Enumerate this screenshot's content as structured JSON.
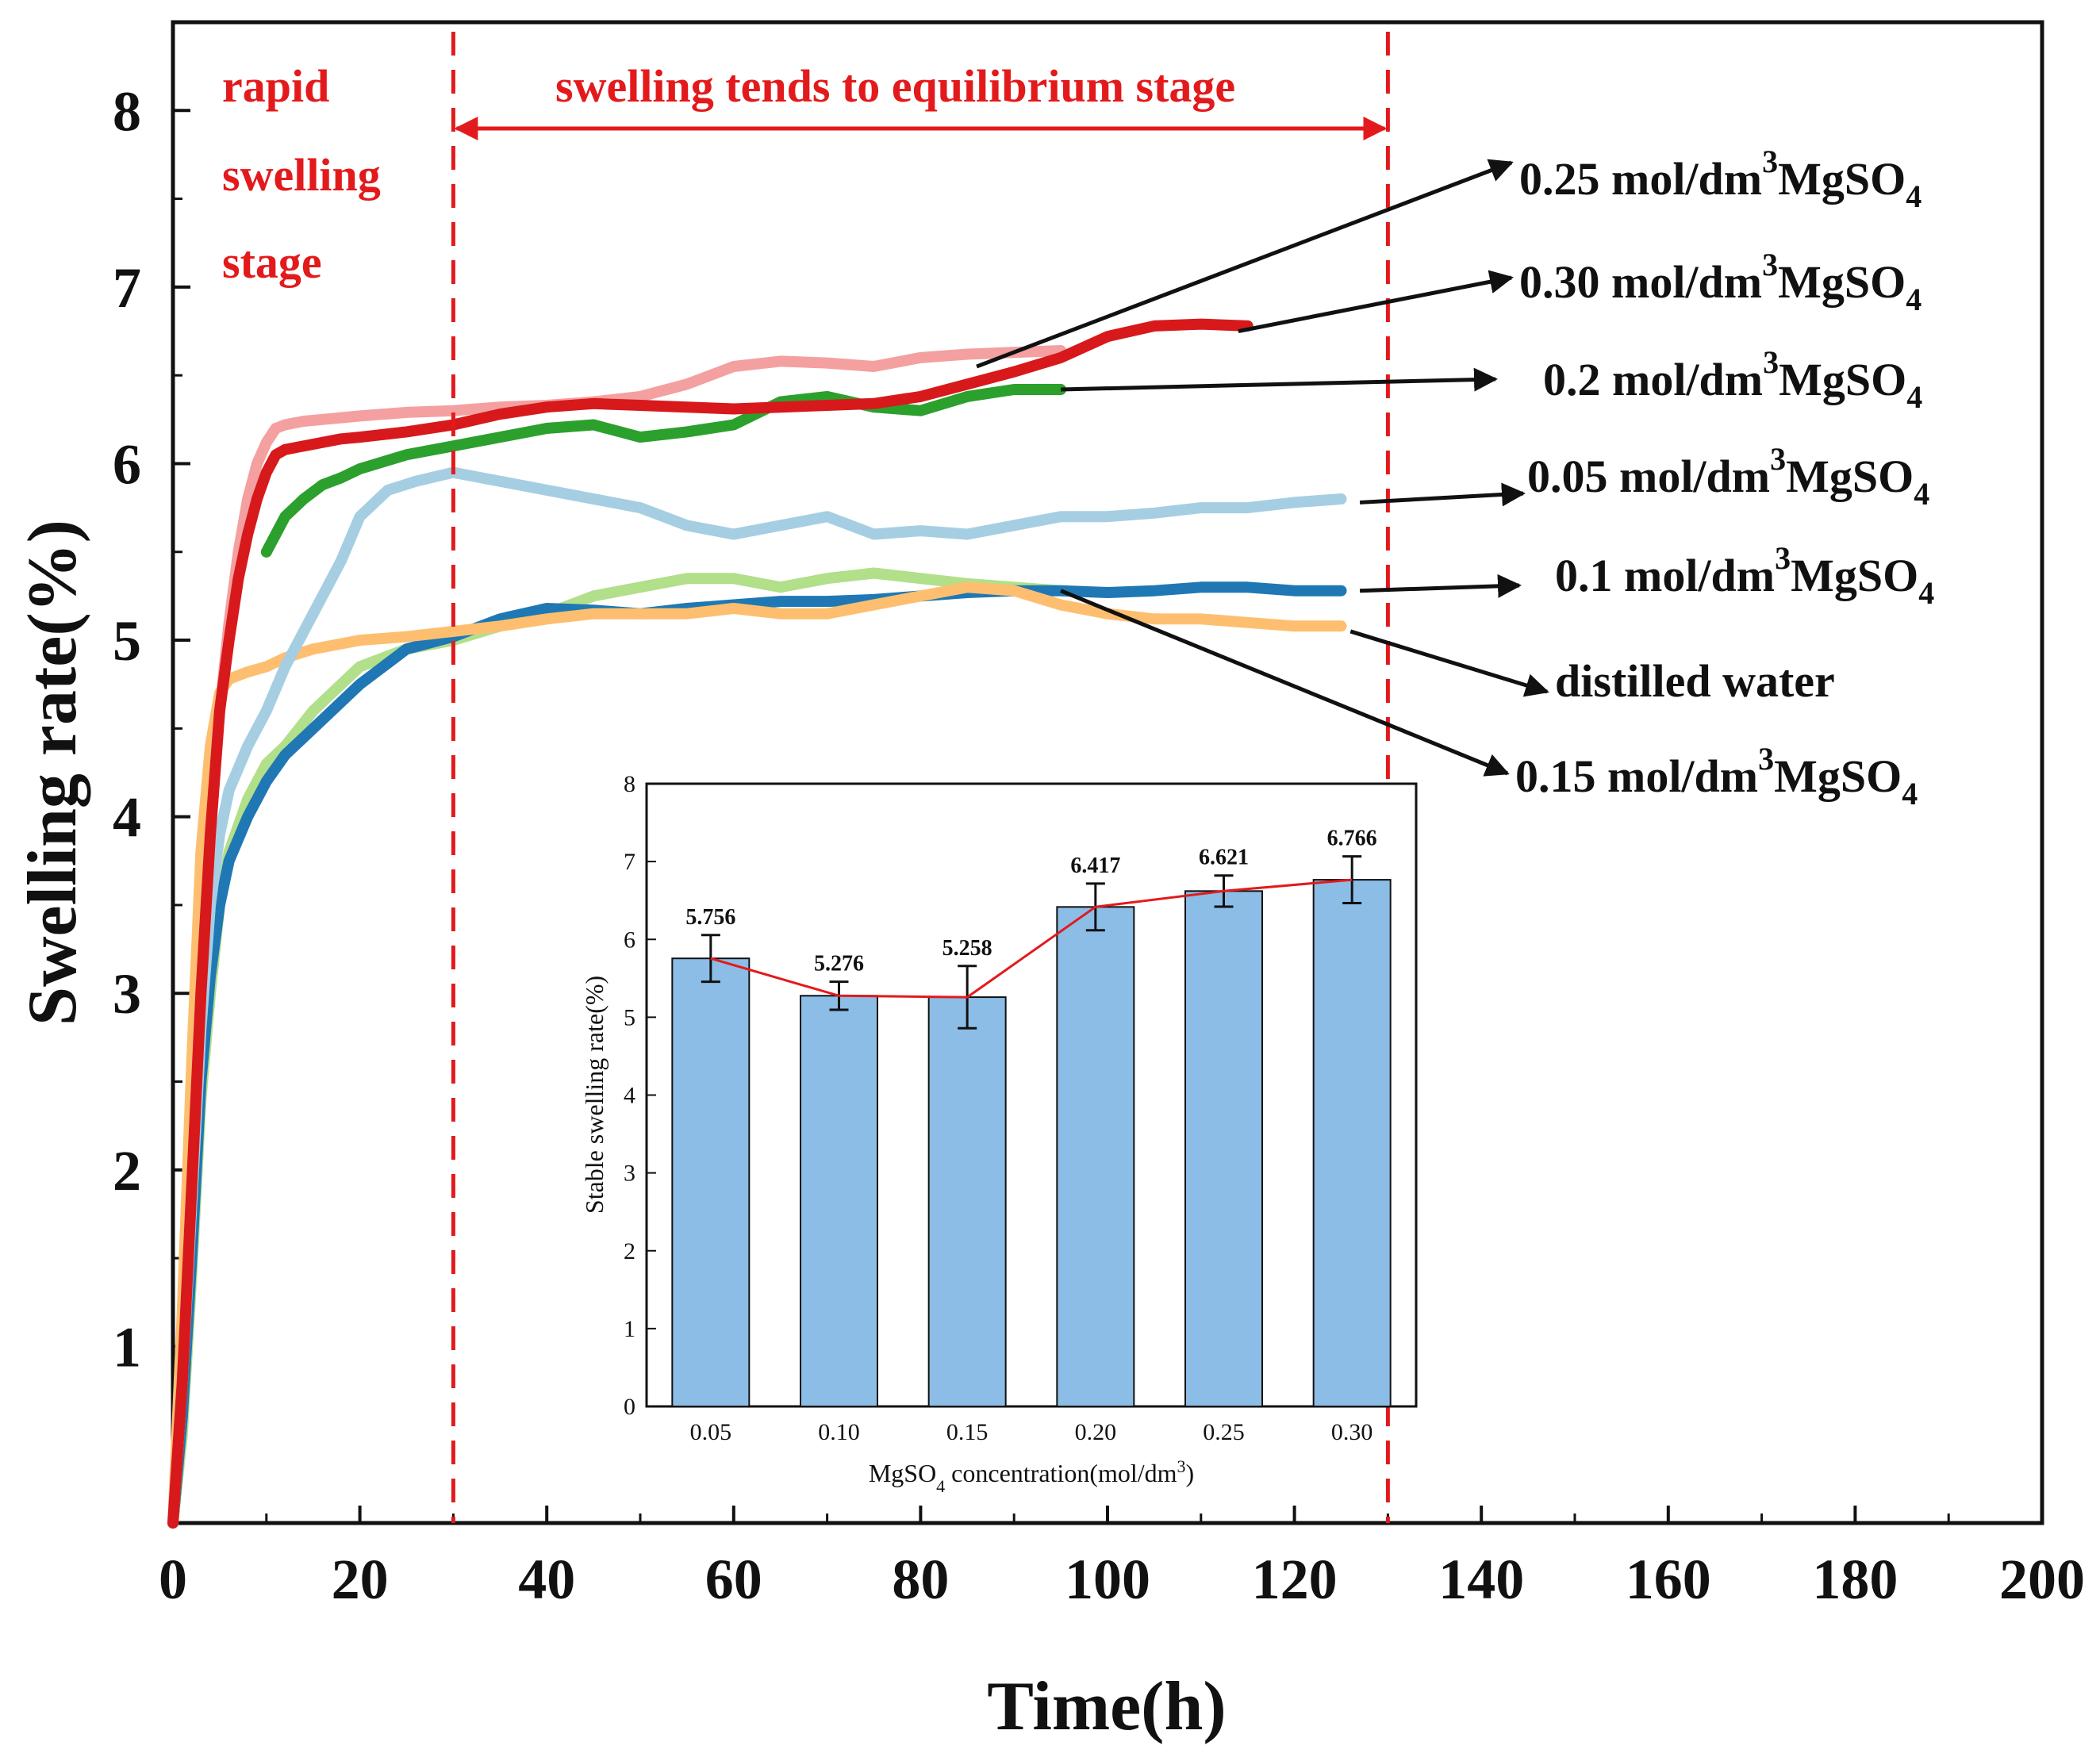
{
  "chart_data": [
    {
      "type": "line",
      "title": "",
      "xlabel": "Time(h)",
      "ylabel": "Swelling rate(%)",
      "xlim": [
        0,
        200
      ],
      "ylim": [
        0,
        8.5
      ],
      "xticks": [
        "0",
        "20",
        "40",
        "60",
        "80",
        "100",
        "120",
        "140",
        "160",
        "180",
        "200"
      ],
      "yticks": [
        "1",
        "2",
        "3",
        "4",
        "5",
        "6",
        "7",
        "8"
      ],
      "stage_markers": [
        30,
        130
      ],
      "annotations": {
        "rapid_line1": "rapid",
        "rapid_line2": "swelling",
        "rapid_line3": "stage",
        "equilibrium": "swelling tends to equilibrium stage"
      },
      "series": [
        {
          "name": "0.25 mol/dm3MgSO4",
          "label_value": "0.25 mol/dm",
          "label_sup": "3",
          "label_chem": "MgSO",
          "label_sub": "4",
          "color": "#f4a0a0",
          "x": [
            0,
            1,
            2,
            3,
            4,
            5,
            6,
            7,
            8,
            9,
            10,
            11,
            12,
            14,
            16,
            18,
            20,
            25,
            30,
            35,
            40,
            45,
            50,
            55,
            60,
            65,
            70,
            75,
            80,
            85,
            90,
            95
          ],
          "y": [
            0,
            0.8,
            1.9,
            3.0,
            3.9,
            4.6,
            5.1,
            5.5,
            5.8,
            6.0,
            6.12,
            6.2,
            6.22,
            6.24,
            6.25,
            6.26,
            6.27,
            6.29,
            6.3,
            6.32,
            6.33,
            6.35,
            6.38,
            6.45,
            6.55,
            6.58,
            6.57,
            6.55,
            6.6,
            6.62,
            6.63,
            6.64
          ]
        },
        {
          "name": "0.30 mol/dm3MgSO4",
          "label_value": "0.30 mol/dm",
          "label_sup": "3",
          "label_chem": "MgSO",
          "label_sub": "4",
          "color": "#d7191c",
          "x": [
            0,
            1,
            2,
            3,
            4,
            5,
            6,
            7,
            8,
            9,
            10,
            11,
            12,
            14,
            16,
            18,
            20,
            25,
            30,
            35,
            40,
            45,
            50,
            55,
            60,
            65,
            70,
            75,
            80,
            85,
            90,
            95,
            100,
            105,
            110,
            115
          ],
          "y": [
            0,
            0.8,
            1.9,
            3.0,
            3.9,
            4.6,
            5.0,
            5.35,
            5.6,
            5.8,
            5.95,
            6.05,
            6.08,
            6.1,
            6.12,
            6.14,
            6.15,
            6.18,
            6.22,
            6.28,
            6.32,
            6.34,
            6.33,
            6.32,
            6.31,
            6.32,
            6.33,
            6.34,
            6.38,
            6.45,
            6.52,
            6.6,
            6.72,
            6.78,
            6.79,
            6.78
          ]
        },
        {
          "name": "0.2 mol/dm3MgSO4",
          "label_value": "0.2 mol/dm",
          "label_sup": "3",
          "label_chem": "MgSO",
          "label_sub": "4",
          "color": "#2ca02c",
          "x": [
            10,
            12,
            14,
            16,
            18,
            20,
            25,
            30,
            35,
            40,
            45,
            50,
            55,
            60,
            65,
            70,
            75,
            80,
            85,
            90,
            95
          ],
          "y": [
            5.5,
            5.7,
            5.8,
            5.88,
            5.92,
            5.97,
            6.05,
            6.1,
            6.15,
            6.2,
            6.22,
            6.15,
            6.18,
            6.22,
            6.35,
            6.38,
            6.32,
            6.3,
            6.38,
            6.42,
            6.42
          ]
        },
        {
          "name": "0.05 mol/dm3MgSO4",
          "label_value": "0.05 mol/dm",
          "label_sup": "3",
          "label_chem": "MgSO",
          "label_sub": "4",
          "color": "#a6cee3",
          "x": [
            0,
            1,
            2,
            3,
            4,
            5,
            6,
            8,
            10,
            12,
            15,
            18,
            20,
            23,
            26,
            30,
            35,
            40,
            45,
            50,
            55,
            60,
            65,
            70,
            75,
            80,
            85,
            90,
            95,
            100,
            105,
            110,
            115,
            120,
            125
          ],
          "y": [
            0,
            0.8,
            1.8,
            2.8,
            3.5,
            3.9,
            4.15,
            4.4,
            4.6,
            4.85,
            5.15,
            5.45,
            5.7,
            5.85,
            5.9,
            5.95,
            5.9,
            5.85,
            5.8,
            5.75,
            5.65,
            5.6,
            5.65,
            5.7,
            5.6,
            5.62,
            5.6,
            5.65,
            5.7,
            5.7,
            5.72,
            5.75,
            5.75,
            5.78,
            5.8
          ]
        },
        {
          "name": "0.1 mol/dm3MgSO4",
          "label_value": "0.1 mol/dm",
          "label_sup": "3",
          "label_chem": "MgSO",
          "label_sub": "4",
          "color": "#1f78b4",
          "x": [
            0,
            1,
            2,
            3,
            4,
            5,
            6,
            8,
            10,
            12,
            15,
            18,
            20,
            25,
            30,
            35,
            40,
            45,
            50,
            55,
            60,
            65,
            70,
            75,
            80,
            85,
            90,
            95,
            100,
            105,
            110,
            115,
            120,
            125
          ],
          "y": [
            0,
            0.6,
            1.5,
            2.5,
            3.1,
            3.5,
            3.75,
            4.0,
            4.2,
            4.35,
            4.5,
            4.65,
            4.75,
            4.95,
            5.02,
            5.12,
            5.18,
            5.17,
            5.15,
            5.18,
            5.2,
            5.22,
            5.22,
            5.23,
            5.25,
            5.27,
            5.28,
            5.28,
            5.27,
            5.28,
            5.3,
            5.3,
            5.28,
            5.28
          ]
        },
        {
          "name": "distilled water",
          "label_value": "distilled water",
          "label_sup": "",
          "label_chem": "",
          "label_sub": "",
          "color": "#fdbf6f",
          "x": [
            0,
            1,
            2,
            3,
            4,
            5,
            6,
            8,
            10,
            12,
            15,
            20,
            25,
            30,
            35,
            40,
            45,
            50,
            55,
            60,
            65,
            70,
            75,
            80,
            85,
            90,
            95,
            100,
            105,
            110,
            115,
            120,
            125
          ],
          "y": [
            0,
            1.2,
            2.6,
            3.8,
            4.4,
            4.7,
            4.78,
            4.82,
            4.85,
            4.9,
            4.95,
            5.0,
            5.02,
            5.05,
            5.08,
            5.12,
            5.15,
            5.15,
            5.15,
            5.18,
            5.15,
            5.15,
            5.2,
            5.25,
            5.3,
            5.28,
            5.2,
            5.15,
            5.12,
            5.12,
            5.1,
            5.08,
            5.08
          ]
        },
        {
          "name": "0.15 mol/dm3MgSO4",
          "label_value": "0.15 mol/dm",
          "label_sup": "3",
          "label_chem": "MgSO",
          "label_sub": "4",
          "color": "#b2df8a",
          "x": [
            0,
            1,
            2,
            3,
            4,
            5,
            6,
            8,
            10,
            12,
            15,
            18,
            20,
            25,
            30,
            35,
            40,
            45,
            50,
            55,
            60,
            65,
            70,
            75,
            80,
            85,
            90,
            95
          ],
          "y": [
            0,
            0.5,
            1.4,
            2.4,
            3.0,
            3.5,
            3.8,
            4.1,
            4.3,
            4.4,
            4.6,
            4.75,
            4.85,
            4.95,
            5.0,
            5.08,
            5.15,
            5.25,
            5.3,
            5.35,
            5.35,
            5.3,
            5.35,
            5.38,
            5.35,
            5.32,
            5.3,
            5.28
          ]
        }
      ]
    },
    {
      "type": "bar",
      "title": "",
      "xlabel_prefix": "MgSO",
      "xlabel_sub": "4",
      "xlabel_mid": " concentration(mol/dm",
      "xlabel_sup": "3",
      "xlabel_end": ")",
      "ylabel": "Stable swelling rate(%)",
      "ylim": [
        0,
        8
      ],
      "yticks": [
        "0",
        "1",
        "2",
        "3",
        "4",
        "5",
        "6",
        "7",
        "8"
      ],
      "categories": [
        "0.05",
        "0.10",
        "0.15",
        "0.20",
        "0.25",
        "0.30"
      ],
      "values": [
        5.756,
        5.276,
        5.258,
        6.417,
        6.621,
        6.766
      ],
      "value_labels": [
        "5.756",
        "5.276",
        "5.258",
        "6.417",
        "6.621",
        "6.766"
      ],
      "errors": [
        0.3,
        0.18,
        0.4,
        0.3,
        0.2,
        0.3
      ],
      "bar_color": "#8bbde6",
      "line_color": "#e31a1c"
    }
  ],
  "colors": {
    "stage_marker": "#e31a1c",
    "axis": "#111111"
  }
}
